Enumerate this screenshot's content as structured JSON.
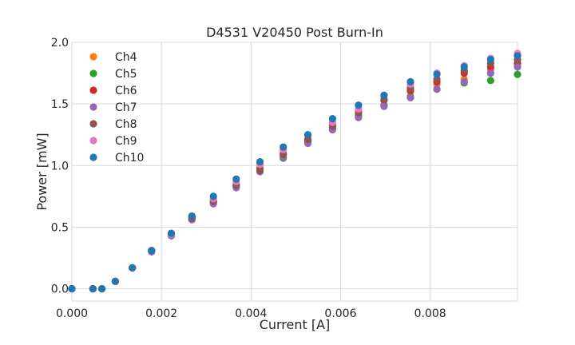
{
  "chart_data": {
    "type": "scatter",
    "title": "D4531 V20450 Post Burn-In",
    "xlabel": "Current [A]",
    "ylabel": "Power [mW]",
    "xlim": [
      0,
      0.00995
    ],
    "ylim": [
      -0.1,
      2.0
    ],
    "xticks": [
      0,
      0.002,
      0.004,
      0.006,
      0.008
    ],
    "xtick_labels": [
      "0.000",
      "0.002",
      "0.004",
      "0.006",
      "0.008"
    ],
    "yticks": [
      0,
      0.5,
      1.0,
      1.5,
      2.0
    ],
    "ytick_labels": [
      "0.0",
      "0.5",
      "1.0",
      "1.5",
      "2.0"
    ],
    "grid": true,
    "legend_position": "top-left",
    "x": [
      0,
      0.00047,
      0.00067,
      0.00097,
      0.00135,
      0.00178,
      0.00222,
      0.00268,
      0.00316,
      0.00367,
      0.0042,
      0.00472,
      0.00527,
      0.00582,
      0.0064,
      0.00697,
      0.00756,
      0.00815,
      0.00876,
      0.00935,
      0.00995
    ],
    "series": [
      {
        "name": "Ch4",
        "color": "#ff7f0e",
        "values": [
          0,
          0,
          0,
          0.06,
          0.17,
          0.31,
          0.44,
          0.58,
          0.72,
          0.85,
          0.98,
          1.1,
          1.22,
          1.33,
          1.44,
          1.53,
          1.6,
          1.66,
          1.7,
          1.78,
          1.82
        ]
      },
      {
        "name": "Ch5",
        "color": "#2ca02c",
        "values": [
          0,
          0,
          0,
          0.06,
          0.17,
          0.3,
          0.43,
          0.57,
          0.7,
          0.83,
          0.96,
          1.06,
          1.19,
          1.3,
          1.4,
          1.49,
          1.56,
          1.62,
          1.67,
          1.69,
          1.74
        ]
      },
      {
        "name": "Ch6",
        "color": "#d62728",
        "values": [
          0,
          0,
          0,
          0.06,
          0.17,
          0.31,
          0.44,
          0.58,
          0.71,
          0.84,
          0.97,
          1.09,
          1.2,
          1.31,
          1.42,
          1.53,
          1.61,
          1.68,
          1.75,
          1.8,
          1.83
        ]
      },
      {
        "name": "Ch7",
        "color": "#9467bd",
        "values": [
          0,
          0,
          0,
          0.06,
          0.17,
          0.3,
          0.43,
          0.56,
          0.69,
          0.82,
          0.95,
          1.07,
          1.18,
          1.29,
          1.39,
          1.48,
          1.55,
          1.62,
          1.68,
          1.75,
          1.8
        ]
      },
      {
        "name": "Ch8",
        "color": "#8c564b",
        "values": [
          0,
          0,
          0,
          0.06,
          0.17,
          0.31,
          0.44,
          0.57,
          0.71,
          0.84,
          0.96,
          1.09,
          1.21,
          1.32,
          1.43,
          1.54,
          1.63,
          1.7,
          1.77,
          1.83,
          1.86
        ]
      },
      {
        "name": "Ch9",
        "color": "#e377c2",
        "values": [
          0,
          0,
          0,
          0.06,
          0.17,
          0.31,
          0.44,
          0.59,
          0.73,
          0.87,
          1.01,
          1.13,
          1.25,
          1.35,
          1.46,
          1.57,
          1.66,
          1.75,
          1.81,
          1.87,
          1.91
        ]
      },
      {
        "name": "Ch10",
        "color": "#1f77b4",
        "values": [
          0,
          0,
          0,
          0.06,
          0.17,
          0.31,
          0.45,
          0.59,
          0.75,
          0.89,
          1.03,
          1.15,
          1.25,
          1.38,
          1.49,
          1.57,
          1.68,
          1.74,
          1.8,
          1.86,
          1.89
        ]
      }
    ]
  }
}
